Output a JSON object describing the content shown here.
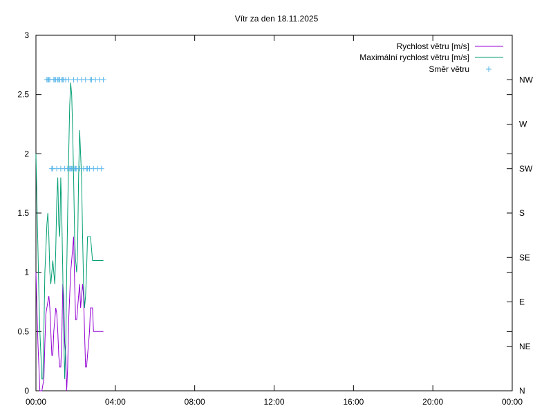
{
  "chart_data": {
    "type": "line",
    "title": "Vítr za den 18.11.2025",
    "x_ticks": [
      "00:00",
      "04:00",
      "08:00",
      "12:00",
      "16:00",
      "20:00",
      "00:00"
    ],
    "x_range_hours": [
      0,
      24
    ],
    "y_left_ticks": [
      "0",
      "0.5",
      "1",
      "1.5",
      "2",
      "2.5",
      "3"
    ],
    "y_left_range": [
      0,
      3
    ],
    "y_right_ticks": [
      "N",
      "NE",
      "E",
      "SE",
      "S",
      "SW",
      "W",
      "NW"
    ],
    "grid": false,
    "legend_position": "top-right",
    "colors": {
      "speed": "#9400d3",
      "max_speed": "#009e73",
      "direction": "#56b4e9"
    },
    "series": [
      {
        "name": "Rychlost větru [m/s]",
        "x_hours": [
          0.0,
          0.05,
          0.1,
          0.15,
          0.2,
          0.25,
          0.3,
          0.35,
          0.4,
          0.45,
          0.5,
          0.55,
          0.6,
          0.65,
          0.7,
          0.75,
          0.8,
          0.85,
          0.9,
          0.95,
          1.0,
          1.05,
          1.1,
          1.15,
          1.2,
          1.25,
          1.3,
          1.35,
          1.4,
          1.45,
          1.5,
          1.55,
          1.6,
          1.65,
          1.7,
          1.75,
          1.8,
          1.85,
          1.9,
          1.95,
          2.0,
          2.05,
          2.1,
          2.15,
          2.2,
          2.25,
          2.3,
          2.35,
          2.4,
          2.45,
          2.5,
          2.55,
          2.6,
          2.65,
          2.7,
          2.75,
          2.8,
          2.85,
          2.9,
          2.95,
          3.0,
          3.05,
          3.1,
          3.15,
          3.2,
          3.25,
          3.3,
          3.35,
          3.4
        ],
        "values": [
          1.0,
          0.7,
          0.4,
          0.2,
          0.0,
          0.0,
          0.0,
          0.05,
          0.1,
          0.4,
          0.65,
          0.7,
          0.75,
          0.8,
          0.7,
          0.5,
          0.3,
          0.3,
          0.5,
          0.6,
          0.7,
          0.65,
          0.5,
          0.3,
          0.2,
          0.2,
          0.4,
          0.9,
          0.8,
          0.4,
          0.3,
          0.0,
          0.2,
          0.6,
          0.8,
          1.0,
          1.1,
          1.2,
          1.3,
          0.9,
          0.6,
          0.6,
          0.7,
          0.8,
          0.9,
          0.7,
          0.8,
          0.9,
          0.8,
          0.5,
          0.2,
          0.2,
          0.3,
          0.4,
          0.5,
          0.7,
          0.7,
          0.7,
          0.5,
          0.5,
          0.5,
          0.5,
          0.5,
          0.5,
          0.5,
          0.5,
          0.5,
          0.5,
          0.5
        ]
      },
      {
        "name": "Maximální rychlost větru [m/s]",
        "x_hours": [
          0.0,
          0.05,
          0.1,
          0.15,
          0.2,
          0.25,
          0.3,
          0.35,
          0.4,
          0.45,
          0.5,
          0.55,
          0.6,
          0.65,
          0.7,
          0.75,
          0.8,
          0.85,
          0.9,
          0.95,
          1.0,
          1.05,
          1.1,
          1.15,
          1.2,
          1.25,
          1.3,
          1.35,
          1.4,
          1.45,
          1.5,
          1.55,
          1.6,
          1.65,
          1.7,
          1.75,
          1.8,
          1.85,
          1.9,
          1.95,
          2.0,
          2.05,
          2.1,
          2.15,
          2.2,
          2.25,
          2.3,
          2.35,
          2.4,
          2.45,
          2.5,
          2.55,
          2.6,
          2.65,
          2.7,
          2.75,
          2.8,
          2.85,
          2.9,
          2.95,
          3.0,
          3.05,
          3.1,
          3.15,
          3.2,
          3.25,
          3.3,
          3.35,
          3.4
        ],
        "values": [
          2.0,
          1.6,
          1.2,
          0.8,
          0.5,
          0.3,
          0.1,
          0.1,
          0.5,
          1.0,
          1.2,
          1.4,
          1.5,
          1.3,
          1.0,
          0.9,
          1.0,
          1.1,
          1.0,
          0.9,
          1.2,
          1.6,
          1.8,
          1.4,
          1.3,
          1.8,
          1.5,
          1.0,
          0.5,
          0.1,
          0.4,
          1.0,
          1.5,
          2.0,
          2.4,
          2.6,
          2.5,
          2.2,
          1.8,
          1.3,
          1.1,
          1.0,
          1.2,
          1.8,
          2.2,
          2.0,
          1.8,
          1.3,
          0.9,
          0.7,
          0.8,
          1.0,
          1.3,
          1.3,
          1.3,
          1.3,
          1.2,
          1.1,
          1.1,
          1.1,
          1.1,
          1.1,
          1.1,
          1.1,
          1.1,
          1.1,
          1.1,
          1.1,
          1.1
        ]
      },
      {
        "name": "Směr větru",
        "x_hours": [
          0.55,
          0.6,
          0.65,
          0.7,
          0.8,
          0.85,
          0.9,
          0.95,
          1.0,
          1.05,
          1.1,
          1.15,
          1.2,
          1.25,
          1.3,
          1.35,
          1.4,
          1.45,
          1.5,
          1.6,
          1.65,
          1.7,
          1.75,
          1.8,
          1.85,
          1.9,
          1.95,
          2.0,
          2.05,
          2.1,
          2.2,
          2.3,
          2.4,
          2.5,
          2.55,
          2.6,
          2.7,
          2.75,
          2.8,
          2.9,
          3.0,
          3.1,
          3.2,
          3.3,
          3.4
        ],
        "directions": [
          "NW",
          "NW",
          "NW",
          "NW",
          "SW",
          "SW",
          "NW",
          "NW",
          "NW",
          "SW",
          "NW",
          "NW",
          "NW",
          "SW",
          "NW",
          "NW",
          "NW",
          "SW",
          "NW",
          "SW",
          "NW",
          "SW",
          "SW",
          "SW",
          "SW",
          "NW",
          "SW",
          "SW",
          "SW",
          "NW",
          "SW",
          "NW",
          "SW",
          "NW",
          "SW",
          "SW",
          "SW",
          "NW",
          "NW",
          "SW",
          "NW",
          "SW",
          "NW",
          "SW",
          "NW"
        ]
      }
    ]
  }
}
